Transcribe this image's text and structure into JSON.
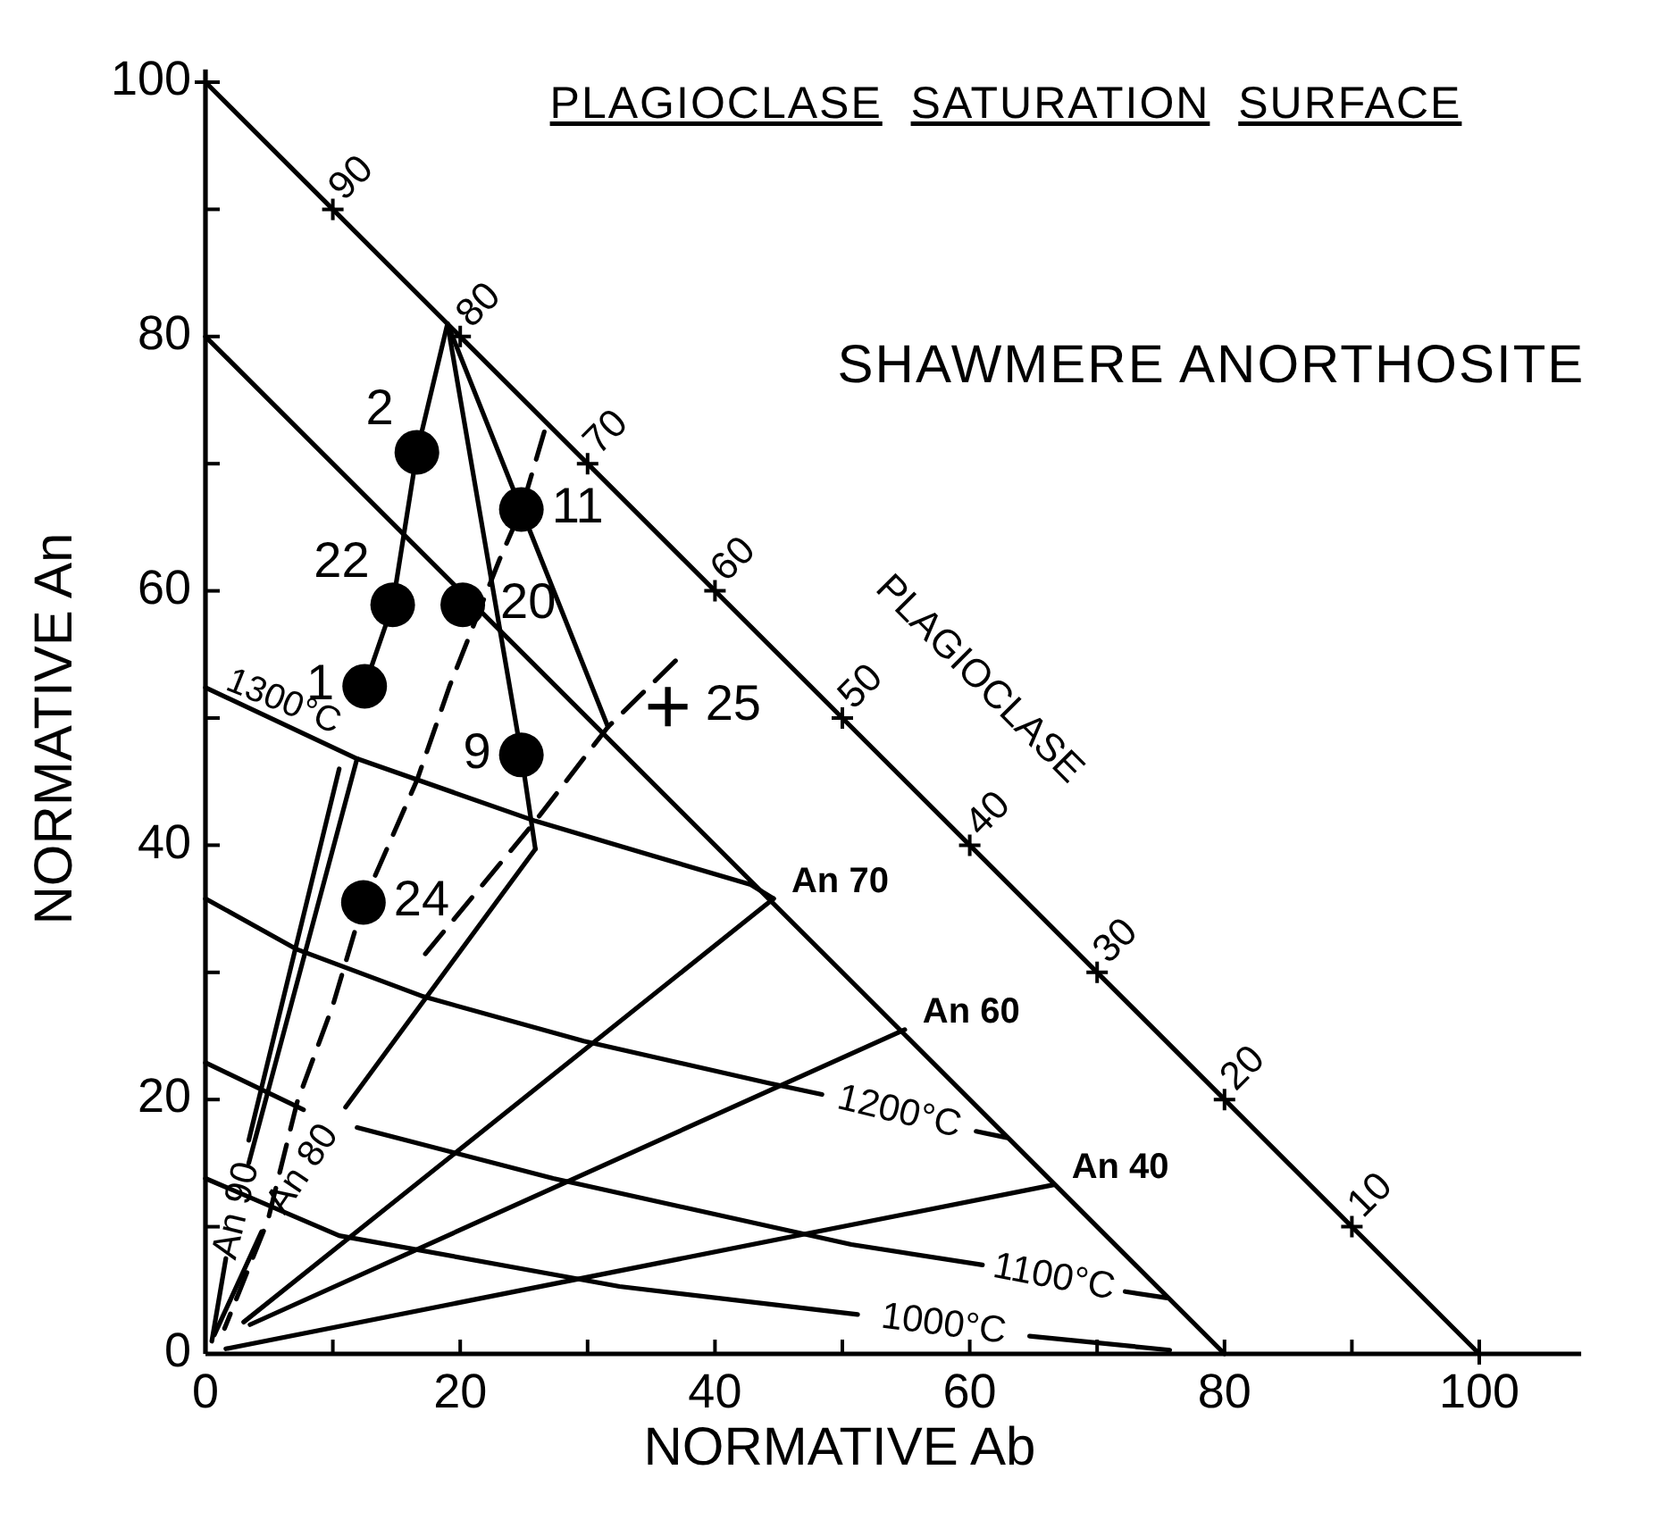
{
  "chart_data": {
    "type": "line",
    "title": "PLAGIOCLASE SATURATION SURFACE",
    "subtitle": "SHAWMERE ANORTHOSITE",
    "xlabel": "NORMATIVE Ab",
    "ylabel": "NORMATIVE An",
    "xlim": [
      0,
      108
    ],
    "ylim": [
      0,
      101
    ],
    "xticks": [
      0,
      {
        "value": 10,
        "label": null
      },
      20,
      {
        "value": 30,
        "label": null
      },
      40,
      {
        "value": 50,
        "label": null
      },
      60,
      {
        "value": 70,
        "label": null
      },
      80,
      {
        "value": 90,
        "label": null
      },
      100
    ],
    "yticks": [
      0,
      {
        "value": 10,
        "label": null
      },
      20,
      {
        "value": 30,
        "label": null
      },
      40,
      {
        "value": 50,
        "label": null
      },
      60,
      {
        "value": 70,
        "label": null
      },
      80,
      {
        "value": 90,
        "label": null
      },
      100
    ],
    "annotations": [
      "PLAGIOCLASE",
      "1300°C",
      {
        "text": "2",
        "x": 16.6,
        "y": 70.9
      },
      {
        "text": "11",
        "x": 24.8,
        "y": 66.4
      },
      {
        "text": "22",
        "x": 14.7,
        "y": 58.9
      },
      {
        "text": "20",
        "x": 20.2,
        "y": 58.9
      },
      {
        "text": "1",
        "x": 12.5,
        "y": 52.5
      },
      {
        "text": "9",
        "x": 24.8,
        "y": 47.1
      },
      {
        "text": "24",
        "x": 12.4,
        "y": 35.5
      },
      {
        "text": "25",
        "x": 36.3,
        "y": 50.9
      }
    ],
    "series": [
      {
        "color": "#000000",
        "marker": "cross",
        "x": [
          0,
          10,
          20,
          30,
          40,
          50,
          60,
          70,
          80,
          90,
          100
        ],
        "values": [
          100,
          90,
          80,
          70,
          60,
          50,
          40,
          30,
          20,
          10,
          0
        ],
        "value_labels": [
          null,
          "90",
          "80",
          "70",
          "60",
          "50",
          "40",
          "30",
          "20",
          "10",
          null
        ]
      },
      {
        "color": "#000000",
        "x": [
          0,
          80
        ],
        "values": [
          80,
          0
        ]
      },
      {
        "color": "#000000",
        "x": [
          19,
          16.6,
          14.7,
          12.5
        ],
        "values": [
          81,
          70.9,
          58.9,
          52.5
        ]
      },
      {
        "color": "#000000",
        "x": [
          19,
          24.8,
          25.9
        ],
        "values": [
          81,
          47.1,
          39.7
        ]
      },
      {
        "color": "#000000",
        "x": [
          19,
          24.8,
          31.6
        ],
        "values": [
          81,
          66.4,
          49.3
        ]
      },
      {
        "color": "#000000",
        "line_style": "dashed",
        "x": [
          26.6,
          24.8,
          23.1,
          19.2,
          16.6,
          12.4,
          10,
          7.2,
          4.9,
          1.5
        ],
        "values": [
          72.5,
          66.4,
          62.5,
          52.6,
          45.1,
          35.5,
          27.4,
          19.8,
          10.5,
          2
        ]
      },
      {
        "color": "#000000",
        "line_style": "dashed",
        "x": [
          36.9,
          31.6,
          25.9,
          16.8
        ],
        "values": [
          54.5,
          49.3,
          41.9,
          30.9
        ]
      },
      {
        "color": "#000000",
        "name": "An 90",
        "x": [
          11.9,
          3.4,
          2.5,
          1.6,
          0.5
        ],
        "values": [
          46.8,
          15,
          null,
          7.5,
          1
        ]
      },
      {
        "color": "#000000",
        "x": [
          10.5,
          3.4
        ],
        "values": [
          46,
          16.8
        ]
      },
      {
        "color": "#000000",
        "name": "An 80",
        "x": [
          25.9,
          11,
          7.7,
          4.4,
          0.7
        ],
        "values": [
          39.7,
          19.4,
          null,
          9.6,
          1.5
        ]
      },
      {
        "color": "#000000",
        "name": "An 70",
        "x": [
          3,
          44.6
        ],
        "values": [
          2.5,
          35.8
        ]
      },
      {
        "color": "#000000",
        "name": "An 60",
        "x": [
          3.5,
          54.9
        ],
        "values": [
          2.3,
          25.5
        ]
      },
      {
        "color": "#000000",
        "name": "An 40",
        "x": [
          1.6,
          66.6
        ],
        "values": [
          0.4,
          13.3
        ]
      },
      {
        "color": "#000000",
        "x": [
          0,
          11.9,
          25.9,
          35,
          42.8,
          44.6
        ],
        "values": [
          52.4,
          46.8,
          41.9,
          39.2,
          36.9,
          35.8
        ]
      },
      {
        "color": "#000000",
        "name": "1200°C",
        "x": [
          0,
          7.2,
          17.1,
          29.7,
          44.2,
          48.4,
          54.5,
          60.5,
          62.9
        ],
        "values": [
          35.8,
          31.8,
          28.1,
          24.6,
          21.3,
          20.4,
          null,
          17.5,
          17
        ]
      },
      {
        "color": "#000000",
        "name": "1100°C",
        "x": [
          0,
          7.7,
          9.8,
          11.9,
          27.3,
          50.7,
          61,
          66.6,
          72.2,
          75.5
        ],
        "values": [
          22.9,
          19.2,
          null,
          17.8,
          13.8,
          8.6,
          7,
          null,
          4.9,
          4.4
        ]
      },
      {
        "color": "#000000",
        "name": "1000°C",
        "x": [
          0,
          10.5,
          32.5,
          51.2,
          58,
          64.7,
          75.7
        ],
        "values": [
          13.8,
          9.3,
          5.3,
          3.1,
          null,
          1.4,
          0.3
        ]
      },
      {
        "type": "scatter",
        "color": "#000000",
        "marker": "circle",
        "x": [
          16.6,
          24.8,
          14.7,
          20.2,
          12.5,
          24.8,
          12.4
        ],
        "values": [
          70.9,
          66.4,
          58.9,
          58.9,
          52.5,
          47.1,
          35.5
        ]
      },
      {
        "type": "scatter",
        "color": "#000000",
        "marker": "cross",
        "x": [
          36.3
        ],
        "values": [
          50.9
        ]
      }
    ]
  }
}
